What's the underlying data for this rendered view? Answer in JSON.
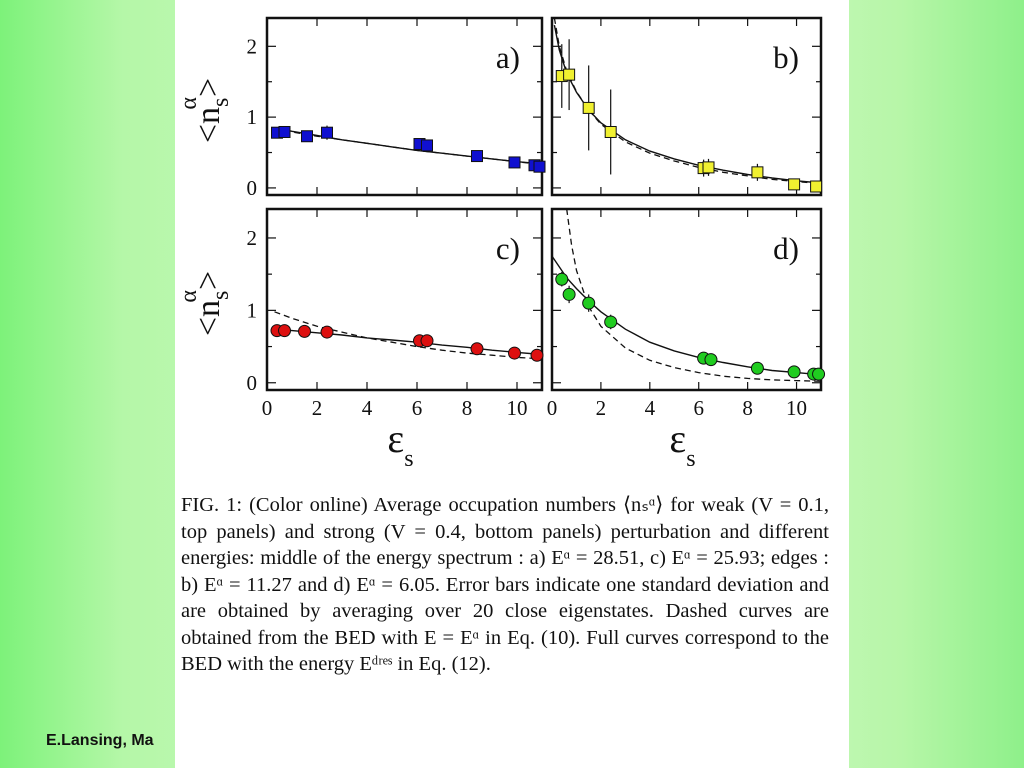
{
  "footer_text": "E.Lansing, Ma",
  "caption": "FIG. 1: (Color online) Average occupation numbers ⟨nₛᵅ⟩ for weak (V = 0.1, top panels) and strong (V = 0.4, bottom panels) perturbation and different energies: middle of the energy spectrum : a) Eᵅ = 28.51, c) Eᵅ = 25.93; edges : b) Eᵅ = 11.27 and d) Eᵅ = 6.05. Error bars indicate one standard deviation and are obtained by averaging over 20 close eigenstates. Dashed curves are obtained from the BED with E = Eᵅ in Eq. (10). Full curves correspond to the BED with the energy Eᵈʳᵉˢ in Eq. (12).",
  "axes": {
    "ylabel": "<n",
    "ylabel_sub": "s",
    "ylabel_sup": "α",
    "ylabel_end": ">",
    "xlabel": "ε",
    "xlabel_sub": "s",
    "xticks": [
      "0",
      "2",
      "4",
      "6",
      "8",
      "10"
    ],
    "yticks": [
      "0",
      "1",
      "2"
    ]
  },
  "chart_data": [
    {
      "type": "scatter",
      "panel": "a)",
      "marker": "square",
      "color": "#1010d0",
      "xlim": [
        0,
        11
      ],
      "ylim": [
        -0.1,
        2.4
      ],
      "points": [
        [
          0.4,
          0.78
        ],
        [
          0.7,
          0.79
        ],
        [
          1.6,
          0.73
        ],
        [
          2.4,
          0.78
        ],
        [
          6.1,
          0.62
        ],
        [
          6.4,
          0.6
        ],
        [
          8.4,
          0.45
        ],
        [
          9.9,
          0.36
        ],
        [
          10.7,
          0.32
        ],
        [
          10.9,
          0.3
        ]
      ],
      "errors": [
        0.08,
        0.06,
        0.07,
        0.1,
        0.05,
        0.05,
        0.05,
        0.06,
        0.06,
        0.06
      ],
      "full_curve": [
        [
          0.3,
          0.85
        ],
        [
          1,
          0.8
        ],
        [
          2,
          0.74
        ],
        [
          3,
          0.68
        ],
        [
          4,
          0.63
        ],
        [
          5,
          0.58
        ],
        [
          6,
          0.53
        ],
        [
          7,
          0.49
        ],
        [
          8,
          0.45
        ],
        [
          9,
          0.41
        ],
        [
          10,
          0.37
        ],
        [
          11,
          0.34
        ]
      ],
      "dashed_curve": [
        [
          0.3,
          0.83
        ],
        [
          1,
          0.79
        ],
        [
          2,
          0.73
        ],
        [
          3,
          0.68
        ],
        [
          4,
          0.63
        ],
        [
          5,
          0.58
        ],
        [
          6,
          0.53
        ],
        [
          7,
          0.49
        ],
        [
          8,
          0.45
        ],
        [
          9,
          0.41
        ],
        [
          10,
          0.37
        ],
        [
          11,
          0.33
        ]
      ]
    },
    {
      "type": "scatter",
      "panel": "b)",
      "marker": "square",
      "color": "#f0f030",
      "xlim": [
        0,
        11
      ],
      "ylim": [
        -0.1,
        2.4
      ],
      "points": [
        [
          0.4,
          1.58
        ],
        [
          0.7,
          1.6
        ],
        [
          1.5,
          1.13
        ],
        [
          2.4,
          0.79
        ],
        [
          6.2,
          0.28
        ],
        [
          6.4,
          0.29
        ],
        [
          8.4,
          0.22
        ],
        [
          9.9,
          0.05
        ],
        [
          10.8,
          0.02
        ]
      ],
      "errors": [
        0.45,
        0.5,
        0.6,
        0.6,
        0.12,
        0.12,
        0.12,
        0.06,
        0.06
      ],
      "full_curve": [
        [
          0.1,
          2.3
        ],
        [
          0.3,
          1.95
        ],
        [
          0.6,
          1.62
        ],
        [
          1,
          1.35
        ],
        [
          1.5,
          1.1
        ],
        [
          2,
          0.92
        ],
        [
          3,
          0.68
        ],
        [
          4,
          0.52
        ],
        [
          5,
          0.41
        ],
        [
          6,
          0.32
        ],
        [
          7,
          0.25
        ],
        [
          8,
          0.19
        ],
        [
          9,
          0.14
        ],
        [
          10,
          0.1
        ],
        [
          11,
          0.07
        ]
      ],
      "dashed_curve": [
        [
          0.1,
          2.4
        ],
        [
          0.3,
          2.0
        ],
        [
          0.6,
          1.65
        ],
        [
          1,
          1.36
        ],
        [
          1.5,
          1.1
        ],
        [
          2,
          0.9
        ],
        [
          3,
          0.65
        ],
        [
          4,
          0.49
        ],
        [
          5,
          0.38
        ],
        [
          6,
          0.29
        ],
        [
          7,
          0.22
        ],
        [
          8,
          0.17
        ],
        [
          9,
          0.12
        ],
        [
          10,
          0.09
        ],
        [
          11,
          0.06
        ]
      ]
    },
    {
      "type": "scatter",
      "panel": "c)",
      "marker": "circle",
      "color": "#dd1010",
      "xlim": [
        0,
        11
      ],
      "ylim": [
        -0.1,
        2.4
      ],
      "points": [
        [
          0.4,
          0.72
        ],
        [
          0.7,
          0.72
        ],
        [
          1.5,
          0.71
        ],
        [
          2.4,
          0.7
        ],
        [
          6.1,
          0.58
        ],
        [
          6.4,
          0.58
        ],
        [
          8.4,
          0.47
        ],
        [
          9.9,
          0.41
        ],
        [
          10.8,
          0.38
        ]
      ],
      "errors": [
        0.03,
        0.03,
        0.03,
        0.03,
        0.03,
        0.03,
        0.03,
        0.03,
        0.03
      ],
      "full_curve": [
        [
          0.3,
          0.74
        ],
        [
          1,
          0.72
        ],
        [
          2,
          0.69
        ],
        [
          3,
          0.66
        ],
        [
          4,
          0.62
        ],
        [
          5,
          0.59
        ],
        [
          6,
          0.56
        ],
        [
          7,
          0.52
        ],
        [
          8,
          0.49
        ],
        [
          9,
          0.45
        ],
        [
          10,
          0.42
        ],
        [
          11,
          0.39
        ]
      ],
      "dashed_curve": [
        [
          0.3,
          0.98
        ],
        [
          1,
          0.89
        ],
        [
          2,
          0.78
        ],
        [
          3,
          0.7
        ],
        [
          4,
          0.62
        ],
        [
          5,
          0.56
        ],
        [
          6,
          0.5
        ],
        [
          7,
          0.45
        ],
        [
          8,
          0.41
        ],
        [
          9,
          0.38
        ],
        [
          10,
          0.35
        ],
        [
          11,
          0.33
        ]
      ]
    },
    {
      "type": "scatter",
      "panel": "d)",
      "marker": "circle",
      "color": "#20cc20",
      "xlim": [
        0,
        11
      ],
      "ylim": [
        -0.1,
        2.4
      ],
      "points": [
        [
          0.4,
          1.43
        ],
        [
          0.7,
          1.22
        ],
        [
          1.5,
          1.1
        ],
        [
          2.4,
          0.84
        ],
        [
          6.2,
          0.34
        ],
        [
          6.5,
          0.32
        ],
        [
          8.4,
          0.2
        ],
        [
          9.9,
          0.15
        ],
        [
          10.7,
          0.12
        ],
        [
          10.9,
          0.12
        ]
      ],
      "errors": [
        0.1,
        0.12,
        0.12,
        0.1,
        0.05,
        0.05,
        0.05,
        0.05,
        0.05,
        0.05
      ],
      "full_curve": [
        [
          0,
          1.75
        ],
        [
          0.3,
          1.6
        ],
        [
          0.6,
          1.45
        ],
        [
          1,
          1.3
        ],
        [
          1.5,
          1.13
        ],
        [
          2,
          0.98
        ],
        [
          3,
          0.74
        ],
        [
          4,
          0.56
        ],
        [
          5,
          0.44
        ],
        [
          6,
          0.35
        ],
        [
          7,
          0.28
        ],
        [
          8,
          0.22
        ],
        [
          9,
          0.17
        ],
        [
          10,
          0.14
        ],
        [
          11,
          0.11
        ]
      ],
      "dashed_curve": [
        [
          0.6,
          2.4
        ],
        [
          0.8,
          1.9
        ],
        [
          1,
          1.55
        ],
        [
          1.5,
          1.05
        ],
        [
          2,
          0.78
        ],
        [
          3,
          0.48
        ],
        [
          4,
          0.31
        ],
        [
          5,
          0.21
        ],
        [
          6,
          0.14
        ],
        [
          7,
          0.09
        ],
        [
          8,
          0.06
        ],
        [
          9,
          0.04
        ],
        [
          10,
          0.03
        ],
        [
          11,
          0.02
        ]
      ]
    }
  ]
}
